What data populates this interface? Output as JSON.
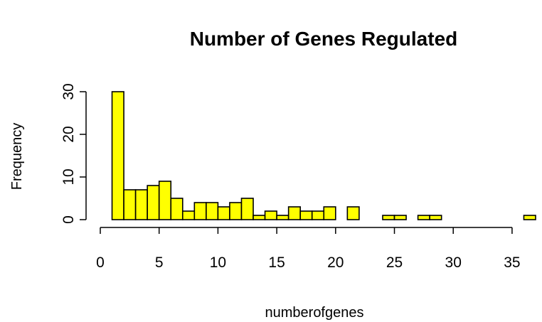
{
  "chart_data": {
    "type": "bar",
    "title": "Number of Genes Regulated",
    "xlabel": "numberofgenes",
    "ylabel": "Frequency",
    "xlim": [
      0,
      37
    ],
    "ylim": [
      0,
      30
    ],
    "xticks": [
      0,
      5,
      10,
      15,
      20,
      25,
      30,
      35
    ],
    "yticks": [
      0,
      10,
      20,
      30
    ],
    "bar_color": "#ffff00",
    "bar_outline": "#000000",
    "grid": false,
    "bins": [
      {
        "x0": 1,
        "x1": 2,
        "count": 30
      },
      {
        "x0": 2,
        "x1": 3,
        "count": 7
      },
      {
        "x0": 3,
        "x1": 4,
        "count": 7
      },
      {
        "x0": 4,
        "x1": 5,
        "count": 8
      },
      {
        "x0": 5,
        "x1": 6,
        "count": 9
      },
      {
        "x0": 6,
        "x1": 7,
        "count": 5
      },
      {
        "x0": 7,
        "x1": 8,
        "count": 2
      },
      {
        "x0": 8,
        "x1": 9,
        "count": 4
      },
      {
        "x0": 9,
        "x1": 10,
        "count": 4
      },
      {
        "x0": 10,
        "x1": 11,
        "count": 3
      },
      {
        "x0": 11,
        "x1": 12,
        "count": 4
      },
      {
        "x0": 12,
        "x1": 13,
        "count": 5
      },
      {
        "x0": 13,
        "x1": 14,
        "count": 1
      },
      {
        "x0": 14,
        "x1": 15,
        "count": 2
      },
      {
        "x0": 15,
        "x1": 16,
        "count": 1
      },
      {
        "x0": 16,
        "x1": 17,
        "count": 3
      },
      {
        "x0": 17,
        "x1": 18,
        "count": 2
      },
      {
        "x0": 18,
        "x1": 19,
        "count": 2
      },
      {
        "x0": 19,
        "x1": 20,
        "count": 3
      },
      {
        "x0": 20,
        "x1": 21,
        "count": 0
      },
      {
        "x0": 21,
        "x1": 22,
        "count": 3
      },
      {
        "x0": 22,
        "x1": 23,
        "count": 0
      },
      {
        "x0": 23,
        "x1": 24,
        "count": 0
      },
      {
        "x0": 24,
        "x1": 25,
        "count": 1
      },
      {
        "x0": 25,
        "x1": 26,
        "count": 1
      },
      {
        "x0": 26,
        "x1": 27,
        "count": 0
      },
      {
        "x0": 27,
        "x1": 28,
        "count": 1
      },
      {
        "x0": 28,
        "x1": 29,
        "count": 1
      },
      {
        "x0": 29,
        "x1": 30,
        "count": 0
      },
      {
        "x0": 30,
        "x1": 31,
        "count": 0
      },
      {
        "x0": 31,
        "x1": 32,
        "count": 0
      },
      {
        "x0": 32,
        "x1": 33,
        "count": 0
      },
      {
        "x0": 33,
        "x1": 34,
        "count": 0
      },
      {
        "x0": 34,
        "x1": 35,
        "count": 0
      },
      {
        "x0": 35,
        "x1": 36,
        "count": 0
      },
      {
        "x0": 36,
        "x1": 37,
        "count": 1
      }
    ]
  }
}
